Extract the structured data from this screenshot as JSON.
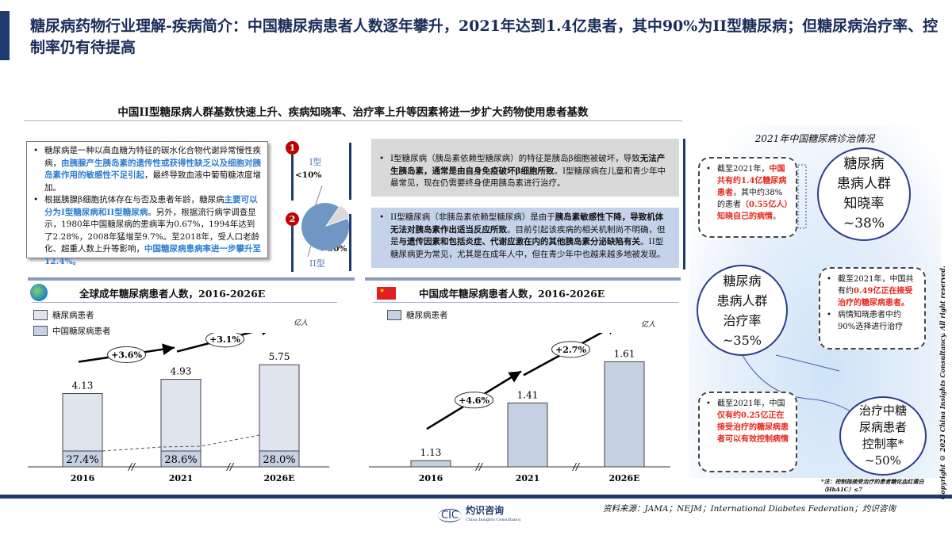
{
  "header": {
    "title": "糖尿病药物行业理解-疾病简介：中国糖尿病患者人数逐年攀升，2021年达到1.4亿患者，其中90%为II型糖尿病；但糖尿病治疗率、控制率仍有待提高"
  },
  "section_title": "中国II型糖尿病人群基数快速上升、疾病知晓率、治疗率上升等因素将进一步扩大药物使用患者基数",
  "intro": {
    "p1a": "糖尿病是一种以高血糖为特征的碳水化合物代谢异常慢性疾病，",
    "p1b": "由胰腺产生胰岛素的遗传性或获得性缺乏以及细胞对胰岛素作用的敏感性不足引起",
    "p1c": "，最终导致血液中葡萄糖浓度增加。",
    "p2a": "根据胰腺β细胞抗体存在与否及患者年龄，糖尿病",
    "p2b": "主要可以分为I型糖尿病和II型糖尿病",
    "p2c": "。另外，根据流行病学调查显示，1980年中国糖尿病的患病率为0.67%，1994年达到了2.28%，2008年猛增至9.7%。至2018年，受人口老龄化、超重人数上升等影响，",
    "p2d": "中国糖尿病患病率进一步攀升至",
    "p2e": "12.4%。"
  },
  "pie": {
    "marker1": "1",
    "marker2": "2",
    "type1": "I型",
    "share1": "<10%",
    "type2": "II型",
    "share2": ">90%",
    "share1_value": 0.1
  },
  "type1_box": {
    "a": "I型糖尿病（胰岛素依赖型糖尿病）的特征是胰岛β细胞被破坏，导致",
    "b": "无法产生胰岛素，通常是由自身免疫破坏β细胞所致",
    "c": "。I型糖尿病在儿童和青少年中最常见，现在仍需要终身使用胰岛素进行治疗。"
  },
  "type2_box": {
    "a": "II型糖尿病（非胰岛素依赖型糖尿病）是由于",
    "b": "胰岛素敏感性下降，导致机体无法对胰岛素作出适当反应所致",
    "c": "。目前引起该疾病的相关机制尚不明确，但是",
    "d": "与遗传因素和包括炎症、代谢应激在内的其他胰岛素分泌缺陷有关",
    "e": "。II型糖尿病更为常见，尤其是在成年人中，但在青少年中也越来越多地被发现。"
  },
  "right": {
    "title": "2021年中国糖尿病诊治情况",
    "c1": [
      "糖尿病",
      "患病人群",
      "知晓率",
      "~38%"
    ],
    "n1": {
      "a": "截至2021年，",
      "b": "中国共有约1.4亿糖尿病患者",
      "c": "，其中约38%的患者",
      "d": "（0.55亿人）知晓自己的病情",
      "e": "。"
    },
    "c2": [
      "糖尿病",
      "患病人群",
      "治疗率",
      "~35%"
    ],
    "n2": {
      "a": "截至2021年，中国共有约",
      "b": "0.49亿正在接受治疗的糖尿病患者。",
      "c": "病情知晓患者中约90%选择进行治疗"
    },
    "c3": [
      "治疗中糖",
      "尿病患者",
      "控制率*",
      "~50%"
    ],
    "n3": {
      "a": "截至2021年，中国",
      "b": "仅有约0.25亿正在接受治疗的糖尿病患者可以有效控制病情"
    },
    "footnote": "*注：控制指接受治疗的患者糖化血红蛋白（HbA1C）≤7"
  },
  "chart_data": [
    {
      "type": "bar",
      "title": "全球成年糖尿病患者人数，2016-2026E",
      "unit": "亿人",
      "legend": [
        "糖尿病患者",
        "中国糖尿病患者"
      ],
      "categories": [
        "2016",
        "2021",
        "2026E"
      ],
      "values": [
        4.13,
        4.93,
        5.75
      ],
      "value_labels": [
        "4.13",
        "4.93",
        "5.75"
      ],
      "china_share_labels": [
        "27.4%",
        "28.6%",
        "28.0%"
      ],
      "china_share": [
        27.4,
        28.6,
        28.0
      ],
      "cagr": [
        "+3.6%",
        "+3.1%"
      ]
    },
    {
      "type": "bar",
      "title": "中国成年糖尿病患者人数，2016-2026E",
      "unit": "亿人",
      "legend": [
        "糖尿病患者"
      ],
      "categories": [
        "2016",
        "2021",
        "2026E"
      ],
      "values": [
        1.13,
        1.41,
        1.61
      ],
      "value_labels": [
        "1.13",
        "1.41",
        "1.61"
      ],
      "cagr": [
        "+4.6%",
        "+2.7%"
      ]
    }
  ],
  "footer": {
    "source": "资料来源：JAMA；NEJM；International Diabetes Federation；灼识咨询",
    "logo_cn": "灼识咨询",
    "logo_en": "China Insights Consultancy",
    "logo_mark": "CIC",
    "copyright": "Copyright © 2023 China Insights Consultancy. All right reserved."
  },
  "colors": {
    "navy": "#1f3a6e",
    "bar": "#c5d0e3",
    "bar_light": "#dfe4ee",
    "red": "#e8271c",
    "blue_text": "#2f7fd0"
  }
}
